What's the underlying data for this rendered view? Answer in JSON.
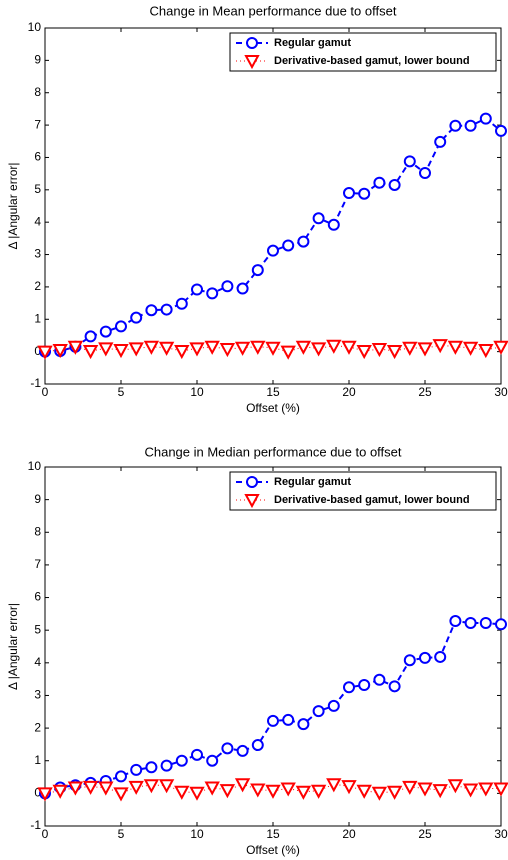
{
  "chart_data": [
    {
      "type": "line",
      "title": "Change in Mean performance due to offset",
      "x_label": "Offset (%)",
      "y_label": "Δ |Angular error|",
      "x": [
        0,
        1,
        2,
        3,
        4,
        5,
        6,
        7,
        8,
        9,
        10,
        11,
        12,
        13,
        14,
        15,
        16,
        17,
        18,
        19,
        20,
        21,
        22,
        23,
        24,
        25,
        26,
        27,
        28,
        29,
        30
      ],
      "series": [
        {
          "name": "Regular gamut",
          "color": "#0000ff",
          "values": [
            0,
            0.02,
            0.15,
            0.47,
            0.62,
            0.78,
            1.05,
            1.28,
            1.3,
            1.48,
            1.92,
            1.8,
            2.02,
            1.95,
            2.52,
            3.12,
            3.28,
            3.4,
            4.12,
            3.92,
            4.9,
            4.88,
            5.22,
            5.15,
            5.88,
            5.52,
            6.48,
            6.98,
            6.98,
            7.2,
            6.82
          ]
        },
        {
          "name": "Derivative-based gamut, lower bound",
          "color": "#ff0000",
          "values": [
            0,
            0.05,
            0.15,
            0.02,
            0.1,
            0.05,
            0.1,
            0.15,
            0.12,
            0.02,
            0.1,
            0.15,
            0.08,
            0.12,
            0.15,
            0.12,
            0,
            0.15,
            0.1,
            0.18,
            0.15,
            0.02,
            0.08,
            0.02,
            0.12,
            0.1,
            0.2,
            0.15,
            0.12,
            0.05,
            0.15
          ]
        }
      ],
      "xlim": [
        0,
        30
      ],
      "xticks": [
        0,
        5,
        10,
        15,
        20,
        25,
        30
      ],
      "ylim": [
        -1,
        10
      ],
      "yticks": [
        -1,
        0,
        1,
        2,
        3,
        4,
        5,
        6,
        7,
        8,
        9,
        10
      ],
      "legend": "upper right"
    },
    {
      "type": "line",
      "title": "Change in Median performance due to offset",
      "x_label": "Offset (%)",
      "y_label": "Δ |Angular error|",
      "x": [
        0,
        1,
        2,
        3,
        4,
        5,
        6,
        7,
        8,
        9,
        10,
        11,
        12,
        13,
        14,
        15,
        16,
        17,
        18,
        19,
        20,
        21,
        22,
        23,
        24,
        25,
        26,
        27,
        28,
        29,
        30
      ],
      "series": [
        {
          "name": "Regular gamut",
          "color": "#0000ff",
          "values": [
            0,
            0.18,
            0.25,
            0.32,
            0.38,
            0.52,
            0.72,
            0.8,
            0.85,
            1.0,
            1.18,
            1.0,
            1.38,
            1.3,
            1.48,
            2.22,
            2.25,
            2.12,
            2.52,
            2.68,
            3.25,
            3.32,
            3.48,
            3.28,
            4.08,
            4.15,
            4.18,
            5.28,
            5.22,
            5.22,
            5.18
          ]
        },
        {
          "name": "Derivative-based gamut, lower bound",
          "color": "#ff0000",
          "values": [
            0,
            0.08,
            0.18,
            0.2,
            0.18,
            0,
            0.2,
            0.25,
            0.25,
            0.05,
            0.02,
            0.18,
            0.1,
            0.28,
            0.12,
            0.08,
            0.15,
            0.05,
            0.08,
            0.28,
            0.22,
            0.08,
            0.02,
            0.05,
            0.2,
            0.15,
            0.1,
            0.25,
            0.12,
            0.15,
            0.15
          ]
        }
      ],
      "xlim": [
        0,
        30
      ],
      "xticks": [
        0,
        5,
        10,
        15,
        20,
        25,
        30
      ],
      "ylim": [
        -1,
        10
      ],
      "yticks": [
        -1,
        0,
        1,
        2,
        3,
        4,
        5,
        6,
        7,
        8,
        9,
        10
      ],
      "legend": "upper right"
    }
  ]
}
